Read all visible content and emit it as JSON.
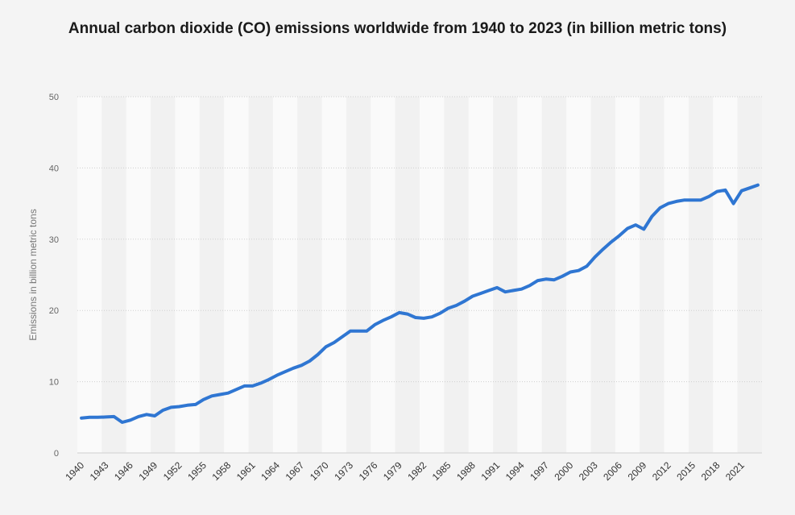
{
  "chart_data": {
    "type": "line",
    "title": "Annual carbon dioxide (CO) emissions worldwide from 1940 to 2023 (in billion metric tons)",
    "xlabel": "",
    "ylabel": "Emissions in billion metric tons",
    "ylim": [
      0,
      50
    ],
    "yticks": [
      0,
      10,
      20,
      30,
      40,
      50
    ],
    "xticks": [
      "1940",
      "1943",
      "1946",
      "1949",
      "1952",
      "1955",
      "1958",
      "1961",
      "1964",
      "1967",
      "1970",
      "1973",
      "1976",
      "1979",
      "1982",
      "1985",
      "1988",
      "1991",
      "1994",
      "1997",
      "2000",
      "2003",
      "2006",
      "2009",
      "2012",
      "2015",
      "2018",
      "2021"
    ],
    "grid": true,
    "legend": "none",
    "line_color": "#2f76d2",
    "x": [
      1940,
      1941,
      1942,
      1943,
      1944,
      1945,
      1946,
      1947,
      1948,
      1949,
      1950,
      1951,
      1952,
      1953,
      1954,
      1955,
      1956,
      1957,
      1958,
      1959,
      1960,
      1961,
      1962,
      1963,
      1964,
      1965,
      1966,
      1967,
      1968,
      1969,
      1970,
      1971,
      1972,
      1973,
      1974,
      1975,
      1976,
      1977,
      1978,
      1979,
      1980,
      1981,
      1982,
      1983,
      1984,
      1985,
      1986,
      1987,
      1988,
      1989,
      1990,
      1991,
      1992,
      1993,
      1994,
      1995,
      1996,
      1997,
      1998,
      1999,
      2000,
      2001,
      2002,
      2003,
      2004,
      2005,
      2006,
      2007,
      2008,
      2009,
      2010,
      2011,
      2012,
      2013,
      2014,
      2015,
      2016,
      2017,
      2018,
      2019,
      2020,
      2021,
      2022,
      2023
    ],
    "values": [
      4.9,
      5.0,
      5.0,
      5.05,
      5.1,
      4.3,
      4.6,
      5.1,
      5.4,
      5.2,
      6.0,
      6.4,
      6.5,
      6.7,
      6.8,
      7.5,
      8.0,
      8.2,
      8.4,
      8.9,
      9.4,
      9.4,
      9.8,
      10.3,
      10.9,
      11.4,
      11.9,
      12.3,
      12.9,
      13.8,
      14.9,
      15.5,
      16.3,
      17.1,
      17.1,
      17.1,
      18.0,
      18.6,
      19.1,
      19.7,
      19.5,
      19.0,
      18.9,
      19.1,
      19.6,
      20.3,
      20.7,
      21.3,
      22.0,
      22.4,
      22.8,
      23.2,
      22.6,
      22.8,
      23.0,
      23.5,
      24.2,
      24.4,
      24.3,
      24.8,
      25.4,
      25.6,
      26.2,
      27.5,
      28.6,
      29.6,
      30.5,
      31.5,
      32.0,
      31.4,
      33.2,
      34.4,
      35.0,
      35.3,
      35.5,
      35.5,
      35.5,
      36.0,
      36.7,
      36.9,
      35.0,
      36.8,
      37.2,
      37.6
    ]
  }
}
